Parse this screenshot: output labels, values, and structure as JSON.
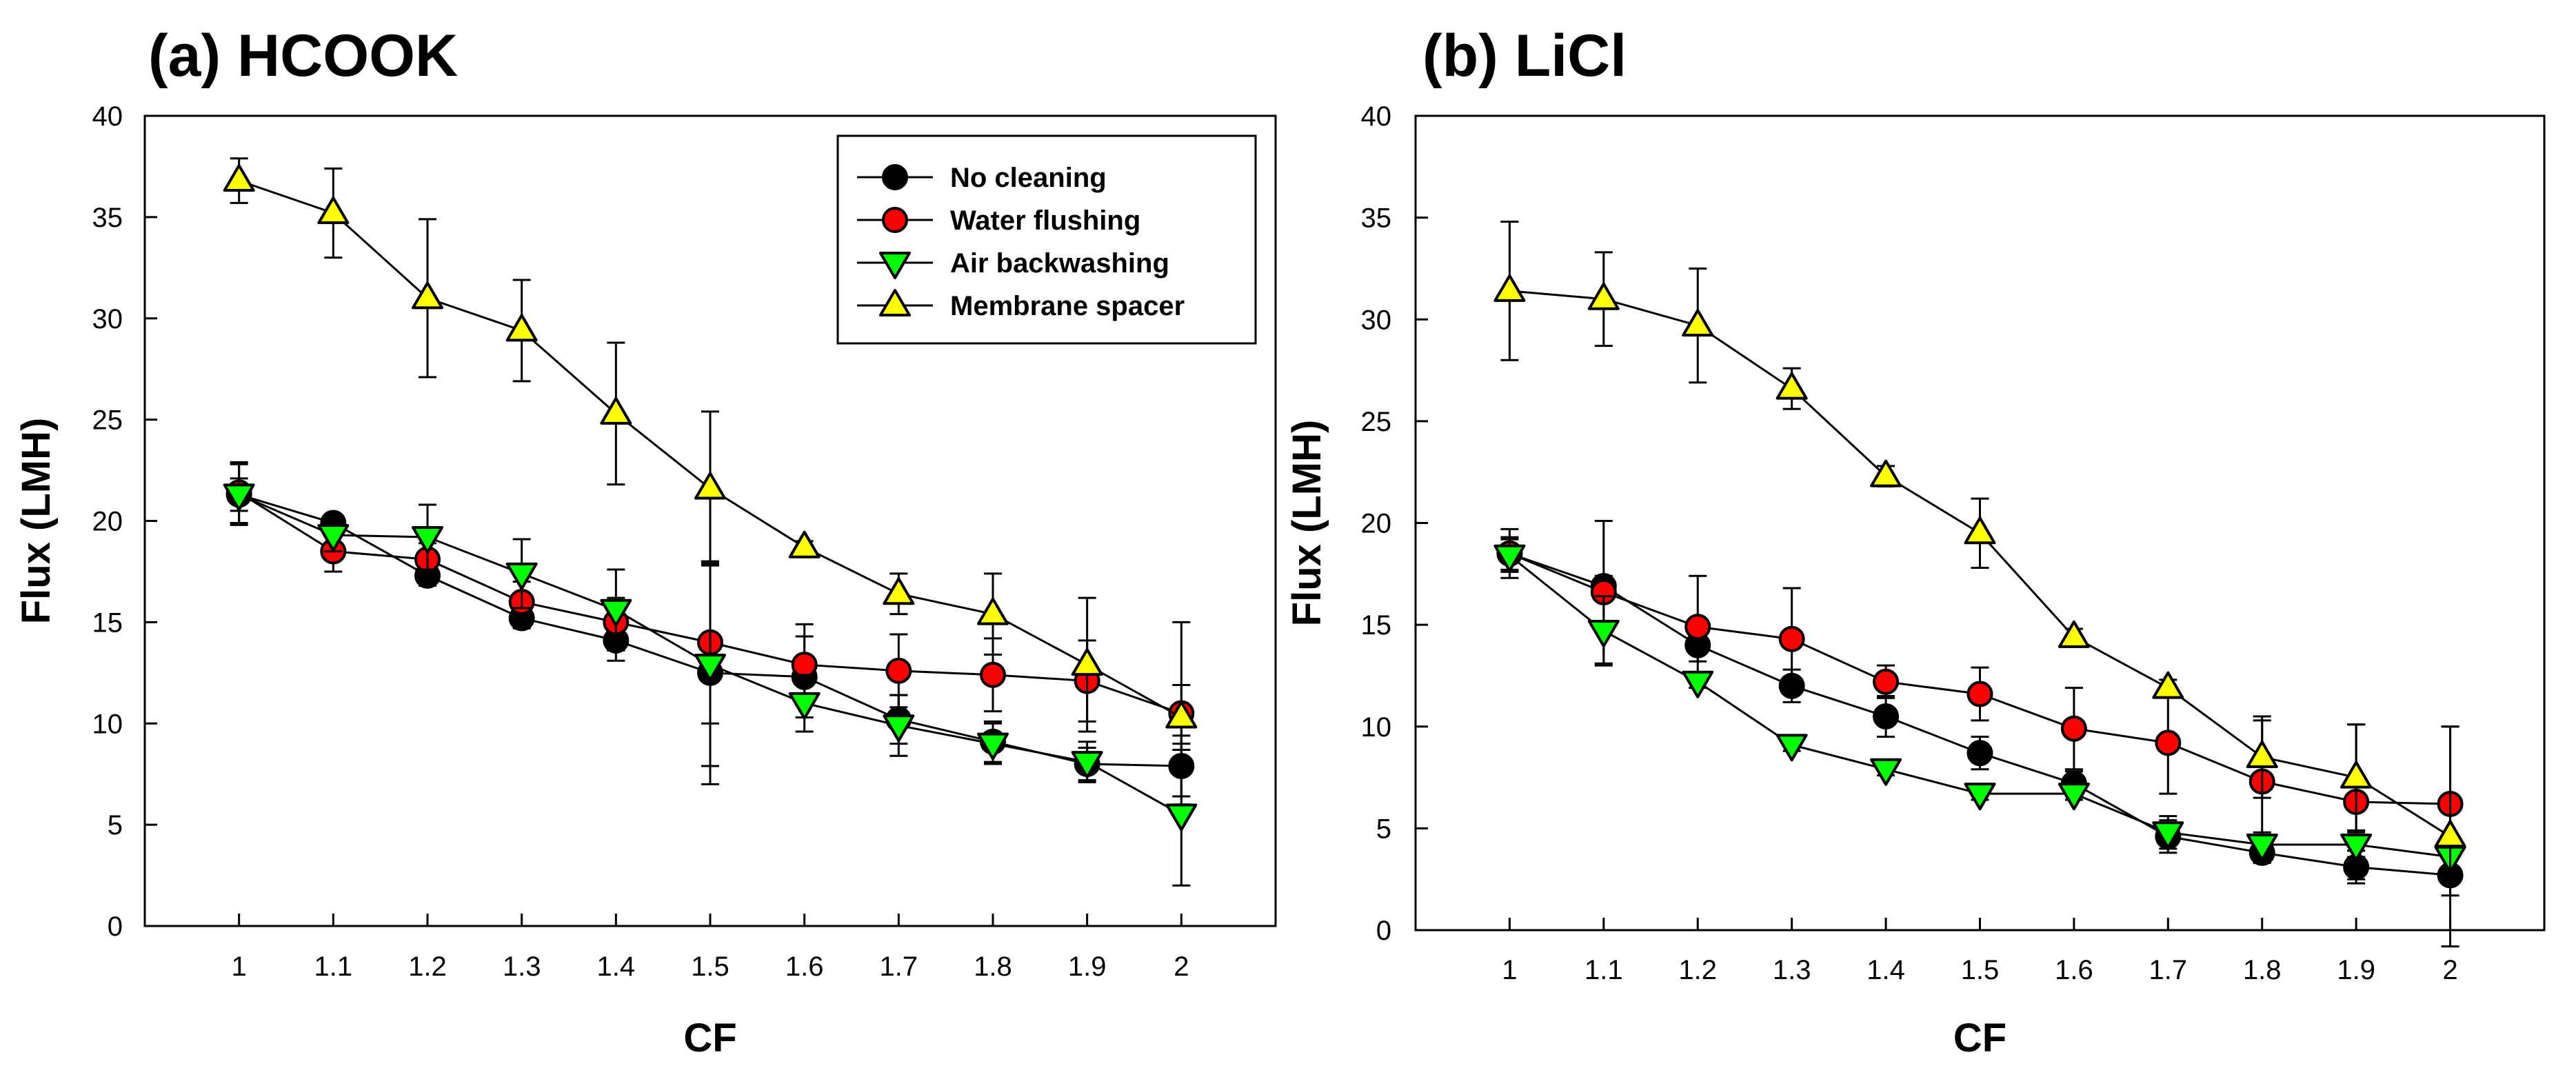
{
  "chart_data": [
    {
      "type": "line",
      "title": "(a) HCOOK",
      "xlabel": "CF",
      "ylabel": "Flux (LMH)",
      "x": [
        1,
        1.1,
        1.2,
        1.3,
        1.4,
        1.5,
        1.6,
        1.7,
        1.8,
        1.9,
        2
      ],
      "xticklabels": [
        "1",
        "1.1",
        "1.2",
        "1.3",
        "1.4",
        "1.5",
        "1.6",
        "1.7",
        "1.8",
        "1.9",
        "2"
      ],
      "xlim": [
        0.9,
        2.1
      ],
      "ylim": [
        0,
        40
      ],
      "yticks": [
        0,
        5,
        10,
        15,
        20,
        25,
        30,
        35,
        40
      ],
      "legend": "top-right",
      "series": [
        {
          "name": "No cleaning",
          "marker": "circle",
          "color": "#000000",
          "values": [
            21.3,
            19.9,
            17.3,
            15.2,
            14.1,
            12.5,
            12.3,
            10.2,
            9.1,
            8.0,
            7.9
          ],
          "errors": [
            0.8,
            0.4,
            0.5,
            0.5,
            1.0,
            5.5,
            2.0,
            1.2,
            1.0,
            0.8,
            1.5
          ]
        },
        {
          "name": "Water flushing",
          "marker": "circle",
          "color": "#ff0000",
          "values": [
            21.4,
            18.5,
            18.1,
            16.0,
            15.0,
            14.0,
            12.9,
            12.6,
            12.4,
            12.1,
            10.5
          ],
          "errors": [
            1.5,
            1.0,
            0.8,
            1.0,
            1.2,
            4.0,
            2.0,
            1.8,
            1.8,
            2.0,
            4.5
          ]
        },
        {
          "name": "Air backwashing",
          "marker": "triangle-down",
          "color": "#00ff00",
          "values": [
            21.3,
            19.3,
            19.2,
            17.4,
            15.6,
            12.9,
            11.0,
            9.9,
            9.0,
            8.1,
            5.5
          ],
          "errors": [
            1.5,
            0.8,
            1.6,
            1.7,
            2.0,
            5.0,
            1.4,
            1.5,
            1.0,
            1.0,
            3.5
          ]
        },
        {
          "name": "Membrane spacer",
          "marker": "triangle-up",
          "color": "#ffff00",
          "values": [
            36.8,
            35.2,
            31.0,
            29.4,
            25.3,
            21.6,
            18.7,
            16.4,
            15.4,
            12.9,
            10.3
          ],
          "errors": [
            1.1,
            2.2,
            3.9,
            2.5,
            3.5,
            3.8,
            0.3,
            1.0,
            2.0,
            3.3,
            1.6
          ]
        }
      ]
    },
    {
      "type": "line",
      "title": "(b) LiCl",
      "xlabel": "CF",
      "ylabel": "Flux (LMH)",
      "x": [
        1,
        1.1,
        1.2,
        1.3,
        1.4,
        1.5,
        1.6,
        1.7,
        1.8,
        1.9,
        2
      ],
      "xticklabels": [
        "1",
        "1.1",
        "1.2",
        "1.3",
        "1.4",
        "1.5",
        "1.6",
        "1.7",
        "1.8",
        "1.9",
        "2"
      ],
      "xlim": [
        0.9,
        2.1
      ],
      "ylim": [
        0,
        40
      ],
      "yticks": [
        0,
        5,
        10,
        15,
        20,
        25,
        30,
        35,
        40
      ],
      "series": [
        {
          "name": "No cleaning",
          "marker": "circle",
          "color": "#000000",
          "values": [
            18.5,
            16.9,
            14.0,
            12.0,
            10.5,
            8.7,
            7.2,
            4.6,
            3.8,
            3.1,
            2.7
          ],
          "errors": [
            0.8,
            0.5,
            0.8,
            0.8,
            1.0,
            0.8,
            0.6,
            0.8,
            0.5,
            0.8,
            1.0
          ]
        },
        {
          "name": "Water flushing",
          "marker": "circle",
          "color": "#ff0000",
          "values": [
            18.5,
            16.6,
            14.9,
            14.3,
            12.2,
            11.6,
            9.9,
            9.2,
            7.3,
            6.3,
            6.2
          ],
          "errors": [
            1.2,
            3.5,
            2.5,
            2.5,
            0.8,
            1.3,
            2.0,
            2.5,
            3.0,
            3.8,
            3.8
          ]
        },
        {
          "name": "Air backwashing",
          "marker": "triangle-down",
          "color": "#00ff00",
          "values": [
            18.4,
            14.7,
            12.2,
            9.1,
            7.9,
            6.7,
            6.7,
            4.8,
            4.2,
            4.2,
            3.6
          ],
          "errors": [
            0.8,
            1.7,
            0.3,
            0.3,
            0.3,
            0.3,
            0.3,
            0.8,
            0.6,
            0.6,
            0.6
          ]
        },
        {
          "name": "Membrane spacer",
          "marker": "triangle-up",
          "color": "#ffff00",
          "values": [
            31.4,
            31.0,
            29.7,
            26.6,
            22.3,
            19.5,
            14.4,
            11.9,
            8.5,
            7.5,
            4.6
          ],
          "errors": [
            3.4,
            2.3,
            2.8,
            1.0,
            0.5,
            1.7,
            0.4,
            0.4,
            2.0,
            2.6,
            5.4
          ]
        }
      ]
    }
  ]
}
